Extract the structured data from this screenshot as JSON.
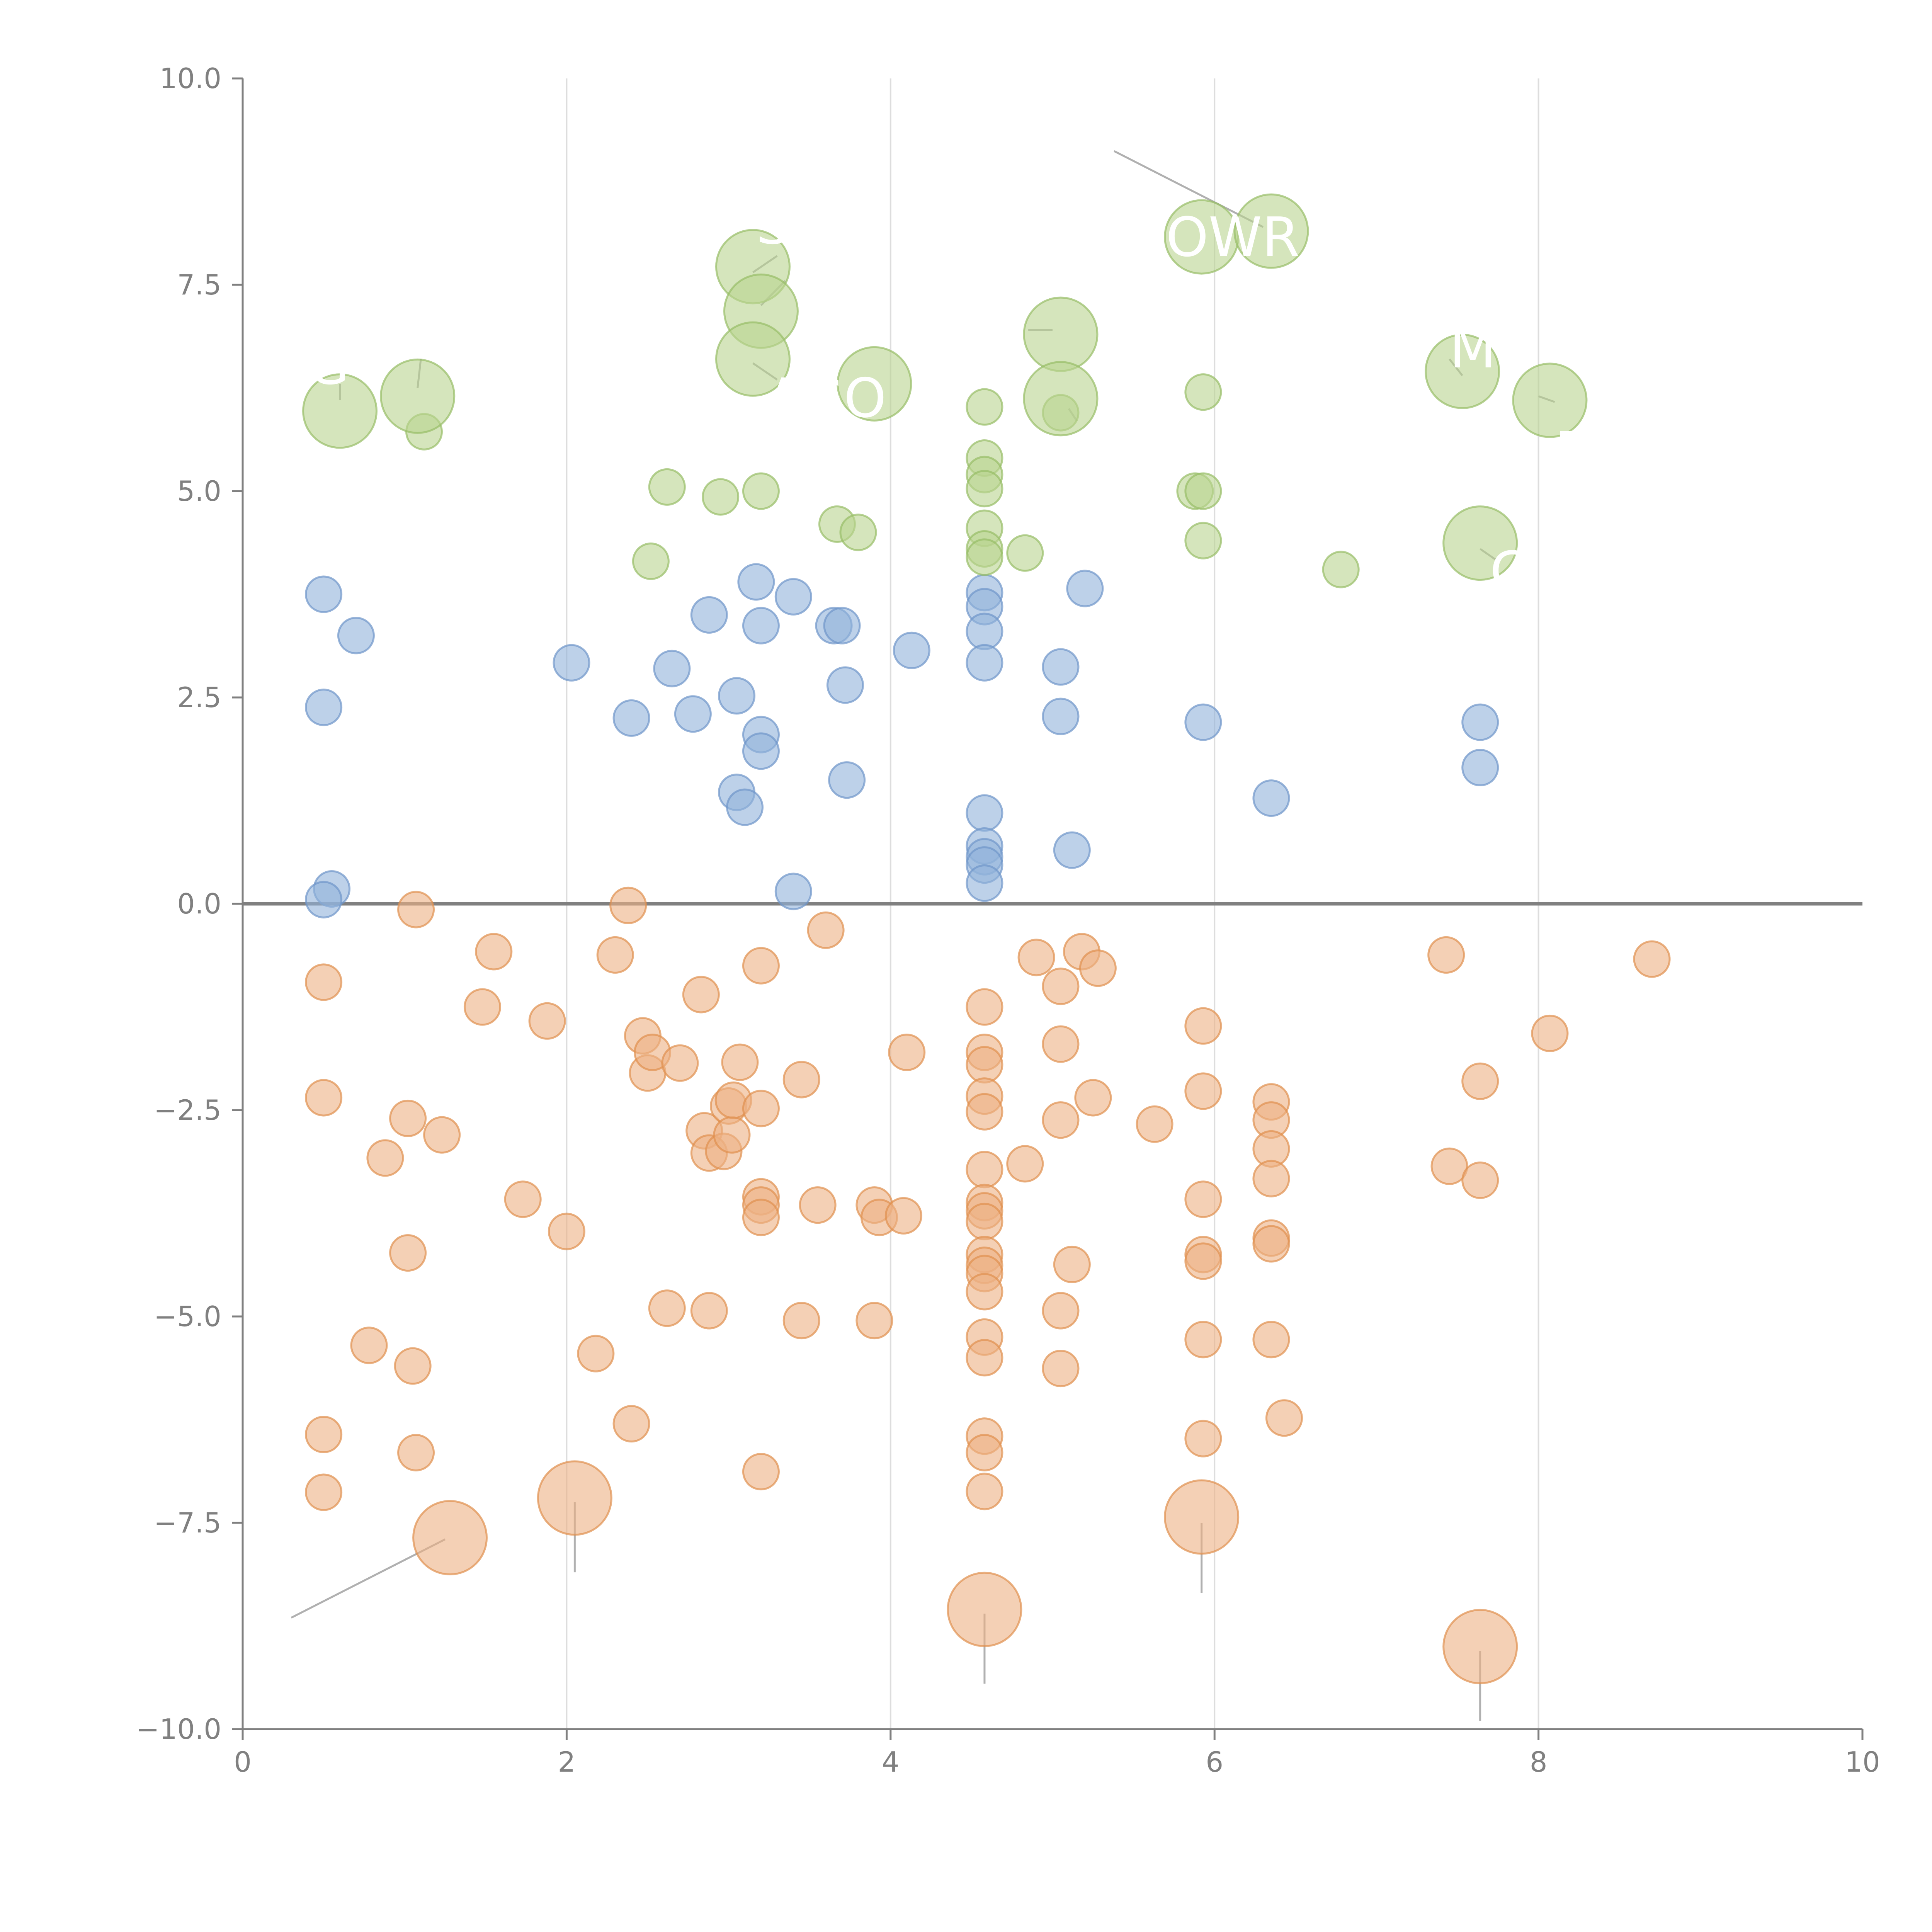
{
  "colors": {
    "positive": "#91b2db",
    "positive_edge": "#6f95c9",
    "negative": "#ecb083",
    "negative_edge": "#e0904f",
    "highlight": "#b9d48f",
    "highlight_edge": "#97bd66",
    "axis": "#808080",
    "grid": "#dddddd",
    "zero_line": "#808080",
    "leader": "#b0b0b0",
    "label_text": "#ffffff"
  },
  "chart_data": {
    "type": "scatter",
    "title": "",
    "xlabel": "",
    "ylabel": "",
    "xlim": [
      0,
      10
    ],
    "ylim": [
      -10,
      10
    ],
    "x_ticks": [
      "0",
      "2",
      "4",
      "6",
      "8",
      "10"
    ],
    "y_ticks": [
      "10.0",
      "7.5",
      "5.0",
      "2.5",
      "0.0",
      "−2.5",
      "−5.0",
      "−7.5",
      "−10.0"
    ],
    "grid": "vertical lines at x ticks",
    "reference_line": {
      "y": 0
    },
    "series": [
      {
        "style": "positive",
        "points": [
          [
            0.5,
            3.75
          ],
          [
            0.7,
            3.25
          ],
          [
            0.5,
            2.38
          ],
          [
            0.55,
            0.18
          ],
          [
            0.5,
            0.05
          ],
          [
            2.03,
            2.92
          ],
          [
            2.4,
            2.25
          ],
          [
            2.65,
            2.85
          ],
          [
            2.78,
            2.3
          ],
          [
            2.88,
            3.5
          ],
          [
            3.05,
            2.52
          ],
          [
            3.05,
            1.35
          ],
          [
            3.1,
            1.17
          ],
          [
            3.17,
            3.9
          ],
          [
            3.2,
            3.37
          ],
          [
            3.2,
            2.05
          ],
          [
            3.2,
            1.85
          ],
          [
            3.4,
            3.72
          ],
          [
            3.4,
            0.15
          ],
          [
            3.65,
            3.37
          ],
          [
            3.7,
            3.37
          ],
          [
            3.72,
            2.65
          ],
          [
            3.73,
            1.5
          ],
          [
            4.13,
            3.07
          ],
          [
            4.58,
            3.77
          ],
          [
            4.58,
            3.6
          ],
          [
            4.58,
            3.3
          ],
          [
            4.58,
            2.92
          ],
          [
            4.58,
            1.1
          ],
          [
            4.58,
            0.7
          ],
          [
            4.58,
            0.57
          ],
          [
            4.58,
            0.47
          ],
          [
            4.58,
            0.25
          ],
          [
            5.05,
            2.87
          ],
          [
            5.05,
            2.27
          ],
          [
            5.12,
            0.65
          ],
          [
            5.2,
            3.82
          ],
          [
            5.93,
            2.2
          ],
          [
            6.35,
            1.28
          ],
          [
            7.64,
            2.2
          ],
          [
            7.64,
            1.65
          ]
        ]
      },
      {
        "style": "negative",
        "points": [
          [
            0.5,
            -0.95
          ],
          [
            0.5,
            -2.35
          ],
          [
            0.5,
            -6.43
          ],
          [
            0.5,
            -7.13
          ],
          [
            0.78,
            -5.35
          ],
          [
            0.88,
            -3.08
          ],
          [
            1.02,
            -2.6
          ],
          [
            1.02,
            -4.23
          ],
          [
            1.05,
            -5.6
          ],
          [
            1.07,
            -6.65
          ],
          [
            1.07,
            -0.07
          ],
          [
            1.23,
            -2.8
          ],
          [
            1.48,
            -1.25
          ],
          [
            1.55,
            -0.58
          ],
          [
            1.73,
            -3.58
          ],
          [
            1.88,
            -1.42
          ],
          [
            2.0,
            -3.97
          ],
          [
            2.18,
            -5.45
          ],
          [
            2.3,
            -0.62
          ],
          [
            2.38,
            -0.02
          ],
          [
            2.4,
            -6.3
          ],
          [
            2.47,
            -1.6
          ],
          [
            2.5,
            -2.05
          ],
          [
            2.53,
            -1.8
          ],
          [
            2.62,
            -4.9
          ],
          [
            2.7,
            -1.93
          ],
          [
            2.83,
            -1.1
          ],
          [
            2.85,
            -2.75
          ],
          [
            2.88,
            -3.02
          ],
          [
            2.88,
            -4.93
          ],
          [
            2.97,
            -3.0
          ],
          [
            3.0,
            -2.45
          ],
          [
            3.02,
            -2.8
          ],
          [
            3.03,
            -2.38
          ],
          [
            3.07,
            -1.92
          ],
          [
            3.2,
            -0.75
          ],
          [
            3.2,
            -2.48
          ],
          [
            3.2,
            -3.55
          ],
          [
            3.2,
            -3.65
          ],
          [
            3.2,
            -3.8
          ],
          [
            3.2,
            -6.88
          ],
          [
            3.45,
            -2.13
          ],
          [
            3.45,
            -5.05
          ],
          [
            3.55,
            -3.65
          ],
          [
            3.6,
            -0.32
          ],
          [
            3.9,
            -3.65
          ],
          [
            3.9,
            -5.05
          ],
          [
            3.93,
            -3.8
          ],
          [
            4.08,
            -3.78
          ],
          [
            4.1,
            -1.8
          ],
          [
            4.58,
            -1.25
          ],
          [
            4.58,
            -1.8
          ],
          [
            4.58,
            -1.95
          ],
          [
            4.58,
            -2.33
          ],
          [
            4.58,
            -2.52
          ],
          [
            4.58,
            -3.22
          ],
          [
            4.58,
            -3.62
          ],
          [
            4.58,
            -3.72
          ],
          [
            4.58,
            -3.85
          ],
          [
            4.58,
            -4.25
          ],
          [
            4.58,
            -4.38
          ],
          [
            4.58,
            -4.48
          ],
          [
            4.58,
            -4.7
          ],
          [
            4.58,
            -5.25
          ],
          [
            4.58,
            -5.5
          ],
          [
            4.58,
            -6.45
          ],
          [
            4.58,
            -6.65
          ],
          [
            4.58,
            -7.12
          ],
          [
            4.83,
            -3.15
          ],
          [
            4.9,
            -0.65
          ],
          [
            5.05,
            -1.0
          ],
          [
            5.05,
            -1.7
          ],
          [
            5.05,
            -2.62
          ],
          [
            5.05,
            -4.93
          ],
          [
            5.05,
            -5.63
          ],
          [
            5.12,
            -4.37
          ],
          [
            5.18,
            -0.58
          ],
          [
            5.25,
            -2.35
          ],
          [
            5.28,
            -0.78
          ],
          [
            5.63,
            -2.67
          ],
          [
            5.93,
            -1.48
          ],
          [
            5.93,
            -2.27
          ],
          [
            5.93,
            -3.58
          ],
          [
            5.93,
            -4.25
          ],
          [
            5.93,
            -4.33
          ],
          [
            5.93,
            -5.28
          ],
          [
            5.93,
            -6.48
          ],
          [
            6.35,
            -2.4
          ],
          [
            6.35,
            -2.62
          ],
          [
            6.35,
            -2.97
          ],
          [
            6.35,
            -3.33
          ],
          [
            6.35,
            -4.05
          ],
          [
            6.35,
            -4.12
          ],
          [
            6.35,
            -5.28
          ],
          [
            6.43,
            -6.23
          ],
          [
            7.43,
            -0.62
          ],
          [
            7.45,
            -3.18
          ],
          [
            7.64,
            -2.15
          ],
          [
            7.64,
            -3.35
          ],
          [
            8.07,
            -1.57
          ],
          [
            8.7,
            -0.67
          ]
        ]
      },
      {
        "style": "highlight",
        "points": [
          [
            1.12,
            5.72
          ],
          [
            2.52,
            4.15
          ],
          [
            2.62,
            5.05
          ],
          [
            2.95,
            4.93
          ],
          [
            3.2,
            5.0
          ],
          [
            3.67,
            4.6
          ],
          [
            3.8,
            4.5
          ],
          [
            4.58,
            6.02
          ],
          [
            4.58,
            5.4
          ],
          [
            4.58,
            5.2
          ],
          [
            4.58,
            5.03
          ],
          [
            4.58,
            4.55
          ],
          [
            4.58,
            4.3
          ],
          [
            4.58,
            4.2
          ],
          [
            4.83,
            4.25
          ],
          [
            5.05,
            5.95
          ],
          [
            5.88,
            5.0
          ],
          [
            5.93,
            6.2
          ],
          [
            5.93,
            5.0
          ],
          [
            5.93,
            4.4
          ],
          [
            6.78,
            4.05
          ]
        ]
      },
      {
        "style": "highlight",
        "size": "large",
        "points": [
          [
            0.6,
            5.97
          ],
          [
            1.08,
            6.15
          ],
          [
            3.15,
            7.72
          ],
          [
            3.2,
            7.18
          ],
          [
            3.15,
            6.6
          ],
          [
            3.9,
            6.3
          ],
          [
            5.05,
            6.9
          ],
          [
            5.05,
            6.12
          ],
          [
            5.92,
            8.08
          ],
          [
            6.35,
            8.15
          ],
          [
            7.53,
            6.45
          ],
          [
            8.07,
            6.1
          ],
          [
            7.64,
            4.37
          ]
        ]
      },
      {
        "style": "negative",
        "size": "large",
        "points": [
          [
            1.28,
            -7.68
          ],
          [
            2.05,
            -7.2
          ],
          [
            4.58,
            -8.55
          ],
          [
            5.92,
            -7.43
          ],
          [
            7.64,
            -9.0
          ]
        ]
      }
    ],
    "annotations": [
      {
        "text": "G",
        "x": 0.4,
        "y": 6.3
      },
      {
        "text": "S",
        "x": 3.17,
        "y": 8.0
      },
      {
        "text": "AGO",
        "x": 3.23,
        "y": 5.9
      },
      {
        "text": "OWR",
        "x": 5.7,
        "y": 7.85
      },
      {
        "text": "M",
        "x": 7.45,
        "y": 6.5
      },
      {
        "text": "R",
        "x": 8.1,
        "y": 5.25
      },
      {
        "text": "C",
        "x": 7.7,
        "y": 3.8
      }
    ],
    "leaders": [
      [
        0.6,
        6.1,
        0.6,
        6.3
      ],
      [
        1.08,
        6.25,
        1.1,
        6.6
      ],
      [
        3.2,
        7.25,
        3.35,
        7.55
      ],
      [
        3.15,
        7.65,
        3.3,
        7.85
      ],
      [
        3.15,
        6.55,
        3.3,
        6.35
      ],
      [
        4.85,
        6.95,
        5.0,
        6.95
      ],
      [
        5.1,
        6.0,
        5.15,
        5.85
      ],
      [
        5.38,
        9.12,
        6.3,
        8.2
      ],
      [
        7.53,
        6.4,
        7.45,
        6.6
      ],
      [
        8.1,
        6.08,
        8.0,
        6.15
      ],
      [
        7.64,
        4.3,
        7.75,
        4.15
      ],
      [
        1.25,
        -7.7,
        0.3,
        -8.65
      ],
      [
        2.05,
        -7.25,
        2.05,
        -8.1
      ],
      [
        4.58,
        -8.6,
        4.58,
        -9.45
      ],
      [
        5.92,
        -7.5,
        5.92,
        -8.35
      ],
      [
        7.64,
        -9.05,
        7.64,
        -9.9
      ]
    ]
  }
}
